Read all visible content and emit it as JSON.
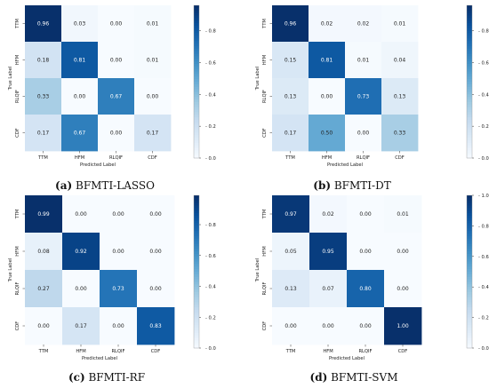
{
  "chart_data": [
    {
      "type": "heatmap",
      "caption_letter": "(a)",
      "caption_text": " BFMTI-LASSO",
      "xlabel": "Predicted Label",
      "ylabel": "True Label",
      "rows": [
        "TTM",
        "HFM",
        "RLQIF",
        "CDF"
      ],
      "cols": [
        "TTM",
        "HFM",
        "RLQIF",
        "CDF"
      ],
      "values": [
        [
          0.96,
          0.03,
          0.0,
          0.01
        ],
        [
          0.18,
          0.81,
          0.0,
          0.01
        ],
        [
          0.33,
          0.0,
          0.67,
          0.0
        ],
        [
          0.17,
          0.67,
          0.0,
          0.17
        ]
      ],
      "labels": [
        [
          "0.96",
          "0.03",
          "0.00",
          "0.01"
        ],
        [
          "0.18",
          "0.81",
          "0.00",
          "0.01"
        ],
        [
          "0.33",
          "0.00",
          "0.67",
          "0.00"
        ],
        [
          "0.17",
          "0.67",
          "0.00",
          "0.17"
        ]
      ],
      "colorbar_ticks": [
        "0.0",
        "0.2",
        "0.4",
        "0.6",
        "0.8"
      ],
      "colorbar_range": [
        0,
        0.96
      ]
    },
    {
      "type": "heatmap",
      "caption_letter": "(b)",
      "caption_text": " BFMTI-DT",
      "xlabel": "Predicted Label",
      "ylabel": "True Label",
      "rows": [
        "TTM",
        "HFM",
        "RLQIF",
        "CDF"
      ],
      "cols": [
        "TTM",
        "HFM",
        "RLQIF",
        "CDF"
      ],
      "values": [
        [
          0.96,
          0.02,
          0.02,
          0.01
        ],
        [
          0.15,
          0.81,
          0.01,
          0.04
        ],
        [
          0.13,
          0.0,
          0.73,
          0.13
        ],
        [
          0.17,
          0.5,
          0.0,
          0.33
        ]
      ],
      "labels": [
        [
          "0.96",
          "0.02",
          "0.02",
          "0.01"
        ],
        [
          "0.15",
          "0.81",
          "0.01",
          "0.04"
        ],
        [
          "0.13",
          "0.00",
          "0.73",
          "0.13"
        ],
        [
          "0.17",
          "0.50",
          "0.00",
          "0.33"
        ]
      ],
      "colorbar_ticks": [
        "0.0",
        "0.2",
        "0.4",
        "0.6",
        "0.8"
      ],
      "colorbar_range": [
        0,
        0.96
      ]
    },
    {
      "type": "heatmap",
      "caption_letter": "(c)",
      "caption_text": " BFMTI-RF",
      "xlabel": "Predicted Label",
      "ylabel": "True Label",
      "rows": [
        "TTM",
        "HFM",
        "RLQIF",
        "CDF"
      ],
      "cols": [
        "TTM",
        "HFM",
        "RLQIF",
        "CDF"
      ],
      "values": [
        [
          0.99,
          0.0,
          0.0,
          0.0
        ],
        [
          0.08,
          0.92,
          0.0,
          0.0
        ],
        [
          0.27,
          0.0,
          0.73,
          0.0
        ],
        [
          0.0,
          0.17,
          0.0,
          0.83
        ]
      ],
      "labels": [
        [
          "0.99",
          "0.00",
          "0.00",
          "0.00"
        ],
        [
          "0.08",
          "0.92",
          "0.00",
          "0.00"
        ],
        [
          "0.27",
          "0.00",
          "0.73",
          "0.00"
        ],
        [
          "0.00",
          "0.17",
          "0.00",
          "0.83"
        ]
      ],
      "colorbar_ticks": [
        "0.0",
        "0.2",
        "0.4",
        "0.6",
        "0.8"
      ],
      "colorbar_range": [
        0,
        0.99
      ]
    },
    {
      "type": "heatmap",
      "caption_letter": "(d)",
      "caption_text": " BFMTI-SVM",
      "xlabel": "Predicted Label",
      "ylabel": "True Label",
      "rows": [
        "TTM",
        "HFM",
        "RLQIF",
        "CDF"
      ],
      "cols": [
        "TTM",
        "HFM",
        "RLQIF",
        "CDF"
      ],
      "values": [
        [
          0.97,
          0.02,
          0.0,
          0.01
        ],
        [
          0.05,
          0.95,
          0.0,
          0.0
        ],
        [
          0.13,
          0.07,
          0.8,
          0.0
        ],
        [
          0.0,
          0.0,
          0.0,
          1.0
        ]
      ],
      "labels": [
        [
          "0.97",
          "0.02",
          "0.00",
          "0.01"
        ],
        [
          "0.05",
          "0.95",
          "0.00",
          "0.00"
        ],
        [
          "0.13",
          "0.07",
          "0.80",
          "0.00"
        ],
        [
          "0.00",
          "0.00",
          "0.00",
          "1.00"
        ]
      ],
      "colorbar_ticks": [
        "0.0",
        "0.2",
        "0.4",
        "0.6",
        "0.8",
        "1.0"
      ],
      "colorbar_range": [
        0,
        1.0
      ]
    }
  ],
  "colormap": [
    "#f7fbff",
    "#deebf7",
    "#c6dbef",
    "#9ecae1",
    "#6baed6",
    "#4292c6",
    "#2171b5",
    "#08519c",
    "#08306b"
  ]
}
